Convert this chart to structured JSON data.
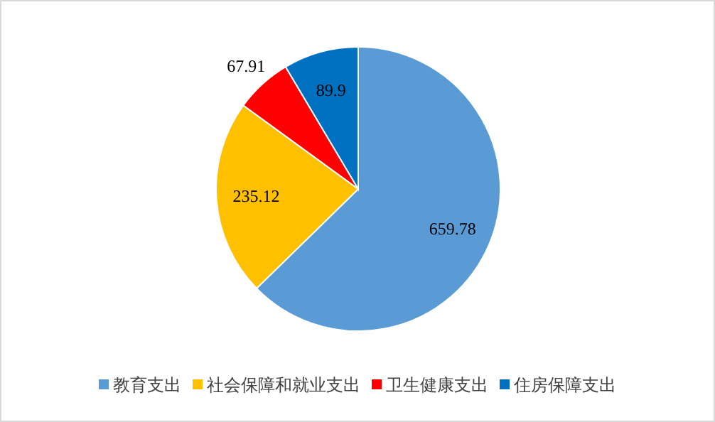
{
  "chart_data": {
    "type": "pie",
    "categories": [
      "教育支出",
      "社会保障和就业支出",
      "卫生健康支出",
      "住房保障支出"
    ],
    "values": [
      659.78,
      235.12,
      67.91,
      89.9
    ],
    "colors": [
      "#5b9bd5",
      "#ffc000",
      "#ff0000",
      "#0070c0"
    ],
    "data_labels": true,
    "legend": "bottom"
  }
}
